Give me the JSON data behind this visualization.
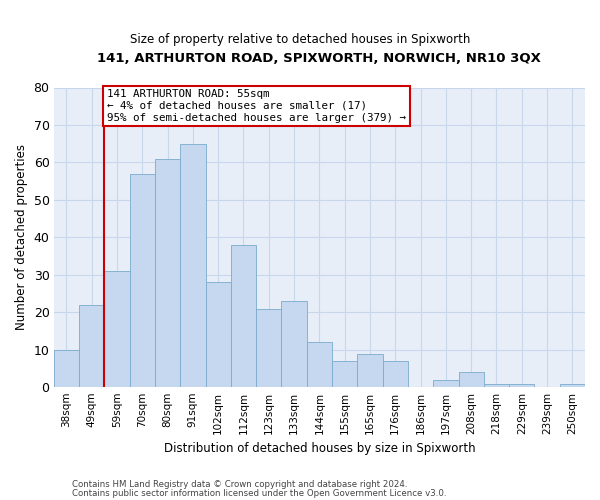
{
  "title1": "141, ARTHURTON ROAD, SPIXWORTH, NORWICH, NR10 3QX",
  "title2": "Size of property relative to detached houses in Spixworth",
  "xlabel": "Distribution of detached houses by size in Spixworth",
  "ylabel": "Number of detached properties",
  "footnote1": "Contains HM Land Registry data © Crown copyright and database right 2024.",
  "footnote2": "Contains public sector information licensed under the Open Government Licence v3.0.",
  "bar_labels": [
    "38sqm",
    "49sqm",
    "59sqm",
    "70sqm",
    "80sqm",
    "91sqm",
    "102sqm",
    "112sqm",
    "123sqm",
    "133sqm",
    "144sqm",
    "155sqm",
    "165sqm",
    "176sqm",
    "186sqm",
    "197sqm",
    "208sqm",
    "218sqm",
    "229sqm",
    "239sqm",
    "250sqm"
  ],
  "bar_values": [
    10,
    22,
    31,
    57,
    61,
    65,
    28,
    38,
    21,
    23,
    12,
    7,
    9,
    7,
    0,
    2,
    4,
    1,
    1,
    0,
    1
  ],
  "bar_color": "#c5d8f0",
  "bar_edge_color": "#7aabcc",
  "grid_color": "#c8d8ec",
  "background_color": "#e8eef8",
  "vline_x": 1.5,
  "vline_color": "#cc0000",
  "annotation_text": "141 ARTHURTON ROAD: 55sqm\n← 4% of detached houses are smaller (17)\n95% of semi-detached houses are larger (379) →",
  "ann_box_edgecolor": "#cc0000",
  "ylim_max": 80,
  "yticks": [
    0,
    10,
    20,
    30,
    40,
    50,
    60,
    70,
    80
  ]
}
